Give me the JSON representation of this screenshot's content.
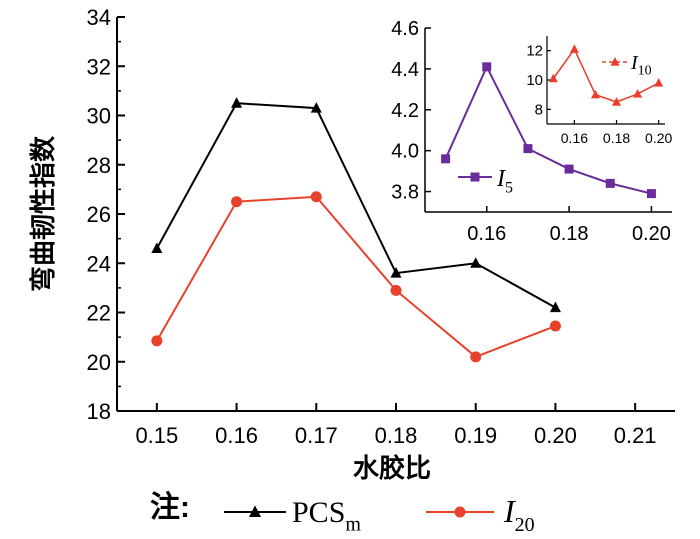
{
  "chart_data": [
    {
      "type": "line",
      "x": [
        0.15,
        0.16,
        0.17,
        0.18,
        0.19,
        0.2
      ],
      "xticks": [
        "0.15",
        "0.16",
        "0.17",
        "0.18",
        "0.19",
        "0.20",
        "0.21"
      ],
      "yticks": [
        "18",
        "20",
        "22",
        "24",
        "26",
        "28",
        "30",
        "32",
        "34"
      ],
      "xlim": [
        0.145,
        0.215
      ],
      "ylim": [
        18,
        34
      ],
      "xlabel": "水胶比",
      "ylabel": "弯曲韧性指数",
      "series": [
        {
          "name": "PCS",
          "subscript": "m",
          "color": "#000000",
          "marker": "triangle",
          "values": [
            24.6,
            30.5,
            30.3,
            23.6,
            24.0,
            22.2
          ]
        },
        {
          "name": "I",
          "subscript": "20",
          "color": "#e8412b",
          "marker": "circle",
          "values": [
            20.85,
            26.5,
            26.7,
            22.9,
            20.2,
            21.45
          ]
        }
      ],
      "legend": {
        "prefix": "注:",
        "placement": "bottom"
      }
    },
    {
      "type": "line",
      "x": [
        0.15,
        0.16,
        0.17,
        0.18,
        0.19,
        0.2
      ],
      "xticks": [
        "0.16",
        "0.18",
        "0.20"
      ],
      "yticks": [
        "3.8",
        "4.0",
        "4.2",
        "4.4",
        "4.6"
      ],
      "xlim": [
        0.145,
        0.205
      ],
      "ylim": [
        3.7,
        4.6
      ],
      "series": [
        {
          "name": "I",
          "subscript": "5",
          "color": "#6a2c9a",
          "marker": "square",
          "values": [
            3.96,
            4.41,
            4.01,
            3.91,
            3.84,
            3.79
          ]
        }
      ],
      "legend": {
        "placement": "bottom-left"
      }
    },
    {
      "type": "line",
      "x": [
        0.15,
        0.16,
        0.17,
        0.18,
        0.19,
        0.2
      ],
      "xticks": [
        "0.16",
        "0.18",
        "0.20"
      ],
      "yticks": [
        "8",
        "10",
        "12"
      ],
      "xlim": [
        0.147,
        0.203
      ],
      "ylim": [
        7,
        13
      ],
      "series": [
        {
          "name": "I",
          "subscript": "10",
          "color": "#e8412b",
          "marker": "triangle",
          "dashed_legend": true,
          "values": [
            10.1,
            12.1,
            9.0,
            8.5,
            9.05,
            9.8
          ]
        }
      ],
      "legend": {
        "placement": "top-right"
      }
    }
  ]
}
